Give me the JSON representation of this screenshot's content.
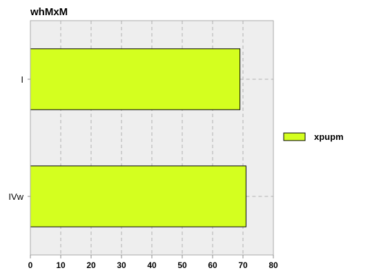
{
  "chart_data": {
    "type": "bar",
    "orientation": "horizontal",
    "title": "whMxM",
    "categories": [
      "I",
      "IVw"
    ],
    "series": [
      {
        "name": "xpupm",
        "values": [
          69,
          71
        ]
      }
    ],
    "xlim": [
      0,
      80
    ],
    "xticks": [
      0,
      10,
      20,
      30,
      40,
      50,
      60,
      70,
      80
    ],
    "grid": true,
    "legend_position": "right",
    "colors": {
      "bar": "#d4ff1f",
      "bar_stroke": "#000000",
      "plot_background": "#eeeeee",
      "grid": "#b0b0b0"
    }
  }
}
